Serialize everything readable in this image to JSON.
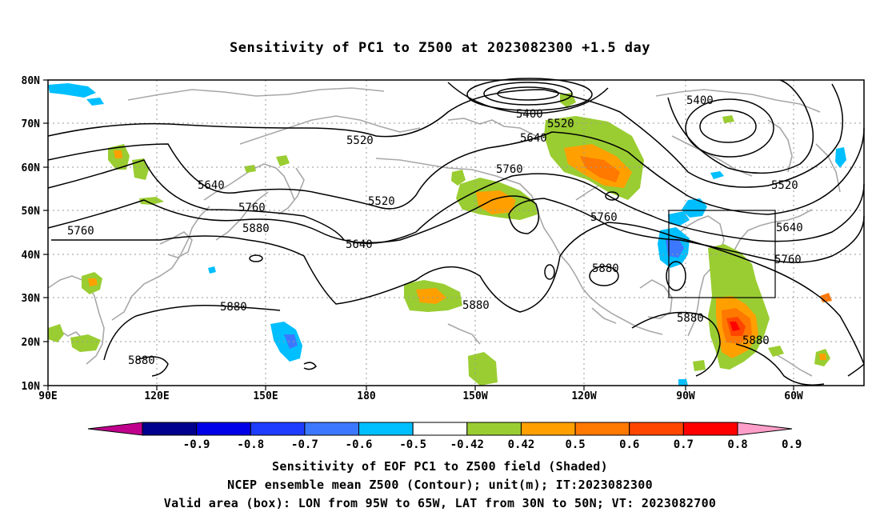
{
  "title": "Sensitivity of PC1 to Z500 at 2023082300 +1.5 day",
  "map": {
    "lon_labels": [
      "90E",
      "120E",
      "150E",
      "180",
      "150W",
      "120W",
      "90W",
      "60W"
    ],
    "lat_labels": [
      "80N",
      "70N",
      "60N",
      "50N",
      "40N",
      "30N",
      "20N",
      "10N"
    ],
    "contour_labels": [
      "5400",
      "5520",
      "5640",
      "5760",
      "5880",
      "5400",
      "5520",
      "5640",
      "5760",
      "5520",
      "5640",
      "5760",
      "5880",
      "5520",
      "5640",
      "5760",
      "5880",
      "5880",
      "5880",
      "5880",
      "5880"
    ],
    "valid_box": {
      "lon": [
        "95W",
        "65W"
      ],
      "lat": [
        "30N",
        "50N"
      ]
    }
  },
  "colorbar": {
    "labels": [
      "-0.9",
      "-0.8",
      "-0.7",
      "-0.6",
      "-0.5",
      "-0.42",
      "0.42",
      "0.5",
      "0.6",
      "0.7",
      "0.8",
      "0.9"
    ],
    "colors": [
      "#c0008c",
      "#00008c",
      "#0000e6",
      "#1e3cff",
      "#3c78ff",
      "#00bfff",
      "#ffffff",
      "#9acd32",
      "#ffa000",
      "#ff7800",
      "#ff4500",
      "#ff0000",
      "#ff9ec8"
    ]
  },
  "captions": {
    "line1": "Sensitivity of EOF PC1 to Z500 field (Shaded)",
    "line2": "NCEP ensemble mean Z500 (Contour); unit(m); IT:2023082300",
    "line3": "Valid area (box): LON from 95W to 65W, LAT from 30N to 50N; VT: 2023082700"
  }
}
